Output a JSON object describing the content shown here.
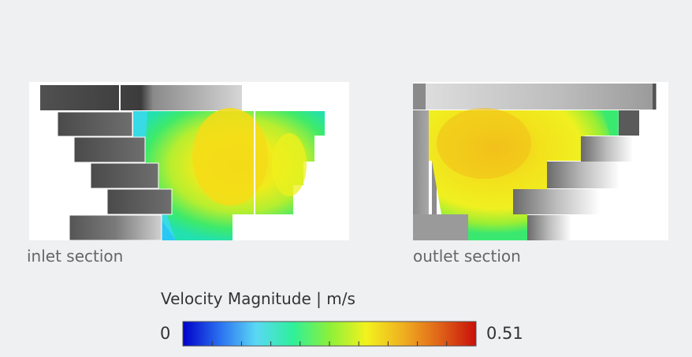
{
  "panels": {
    "inlet": {
      "caption": "inlet section"
    },
    "outlet": {
      "caption": "outlet section"
    }
  },
  "legend": {
    "title": "Velocity Magnitude | m/s",
    "min": "0",
    "max": "0.51",
    "min_value": 0,
    "max_value": 0.51,
    "colors": [
      "#0000c8",
      "#2a6ff0",
      "#5ad8f5",
      "#2ef09a",
      "#8cf03a",
      "#f2f21e",
      "#f0b020",
      "#e06418",
      "#c8100a"
    ]
  }
}
